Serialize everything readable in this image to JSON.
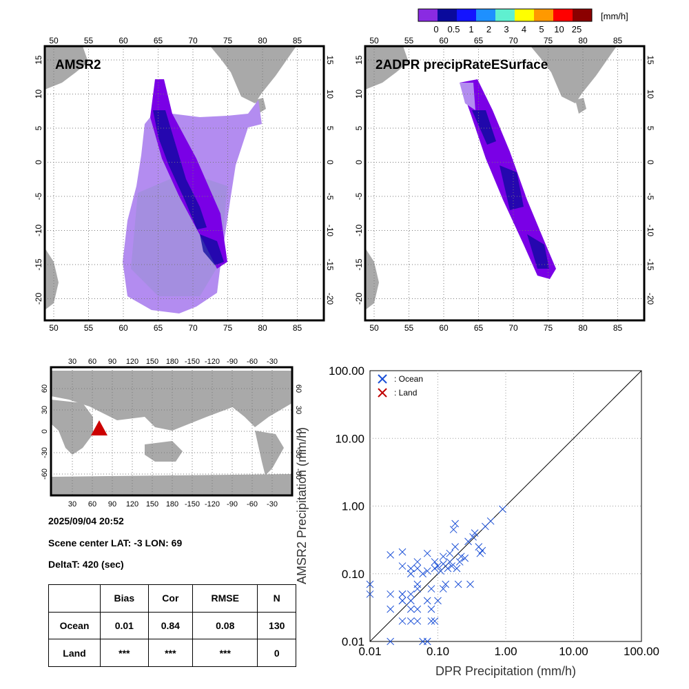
{
  "colorbar": {
    "unit": "[mm/h]",
    "labels": [
      "0",
      "0.5",
      "1",
      "2",
      "3",
      "4",
      "5",
      "10",
      "25"
    ],
    "colors": [
      "#8a2be2",
      "#0a0a9c",
      "#1414ff",
      "#1e90ff",
      "#5ff0d0",
      "#ffff00",
      "#ff9900",
      "#ff0000",
      "#8b0000"
    ]
  },
  "maps": [
    {
      "title": "AMSR2",
      "lon_ticks": [
        "50",
        "55",
        "60",
        "65",
        "70",
        "75",
        "80",
        "85"
      ],
      "lat_ticks": [
        "15",
        "10",
        "5",
        "0",
        "-5",
        "-10",
        "-15",
        "-20"
      ]
    },
    {
      "title": "2ADPR precipRateESurface",
      "lon_ticks": [
        "50",
        "55",
        "60",
        "65",
        "70",
        "75",
        "80",
        "85"
      ],
      "lat_ticks": [
        "15",
        "10",
        "5",
        "0",
        "-5",
        "-10",
        "-15",
        "-20"
      ]
    }
  ],
  "world_map": {
    "lon_ticks": [
      "30",
      "60",
      "90",
      "120",
      "150",
      "180",
      "-150",
      "-120",
      "-90",
      "-60",
      "-30"
    ],
    "lat_ticks": [
      "60",
      "30",
      "0",
      "-30",
      "-60"
    ]
  },
  "info": {
    "datetime": "2025/09/04 20:52",
    "scene_center": "Scene center LAT: -3   LON:  69",
    "delta_t": "DeltaT:  420 (sec)"
  },
  "stats_table": {
    "headers": [
      "",
      "Bias",
      "Cor",
      "RMSE",
      "N"
    ],
    "rows": [
      [
        "Ocean",
        "0.01",
        "0.84",
        "0.08",
        "130"
      ],
      [
        "Land",
        "***",
        "***",
        "***",
        "0"
      ]
    ]
  },
  "chart_data": {
    "type": "scatter",
    "title": "",
    "xlabel": "DPR Precipitation (mm/h)",
    "ylabel": "AMSR2 Precipitation (mm/h)",
    "xscale": "log",
    "yscale": "log",
    "xlim": [
      0.01,
      100
    ],
    "ylim": [
      0.01,
      100
    ],
    "tick_labels": [
      "0.01",
      "0.10",
      "1.00",
      "10.00",
      "100.00"
    ],
    "reference_line": "1:1",
    "legend": [
      {
        "label": ": Ocean",
        "color": "#1a4fd6"
      },
      {
        "label": ": Land",
        "color": "#c00000"
      }
    ],
    "series": [
      {
        "name": ": Ocean",
        "color": "#1a4fd6",
        "x": [
          0.01,
          0.01,
          0.02,
          0.02,
          0.02,
          0.02,
          0.03,
          0.03,
          0.03,
          0.03,
          0.03,
          0.03,
          0.04,
          0.04,
          0.04,
          0.04,
          0.04,
          0.04,
          0.05,
          0.05,
          0.05,
          0.05,
          0.05,
          0.06,
          0.06,
          0.07,
          0.07,
          0.07,
          0.08,
          0.08,
          0.08,
          0.09,
          0.09,
          0.1,
          0.1,
          0.11,
          0.12,
          0.12,
          0.13,
          0.14,
          0.15,
          0.15,
          0.16,
          0.17,
          0.18,
          0.19,
          0.2,
          0.21,
          0.22,
          0.25,
          0.28,
          0.3,
          0.33,
          0.35,
          0.4,
          0.42,
          0.45,
          0.5,
          0.6,
          0.9,
          0.12,
          0.09,
          0.05,
          0.03,
          0.18,
          0.07
        ],
        "y": [
          0.07,
          0.05,
          0.19,
          0.05,
          0.03,
          0.01,
          0.04,
          0.05,
          0.02,
          0.13,
          0.21,
          0.05,
          0.02,
          0.12,
          0.05,
          0.03,
          0.04,
          0.1,
          0.15,
          0.03,
          0.06,
          0.02,
          0.12,
          0.1,
          0.01,
          0.2,
          0.01,
          0.04,
          0.02,
          0.03,
          0.06,
          0.12,
          0.15,
          0.04,
          0.13,
          0.11,
          0.18,
          0.06,
          0.07,
          0.12,
          0.2,
          0.15,
          0.13,
          0.45,
          0.55,
          0.12,
          0.07,
          0.15,
          0.18,
          0.17,
          0.3,
          0.07,
          0.35,
          0.4,
          0.25,
          0.2,
          0.22,
          0.5,
          0.6,
          0.9,
          0.14,
          0.02,
          0.07,
          0.04,
          0.25,
          0.11
        ]
      },
      {
        "name": ": Land",
        "color": "#c00000",
        "x": [],
        "y": []
      }
    ]
  }
}
